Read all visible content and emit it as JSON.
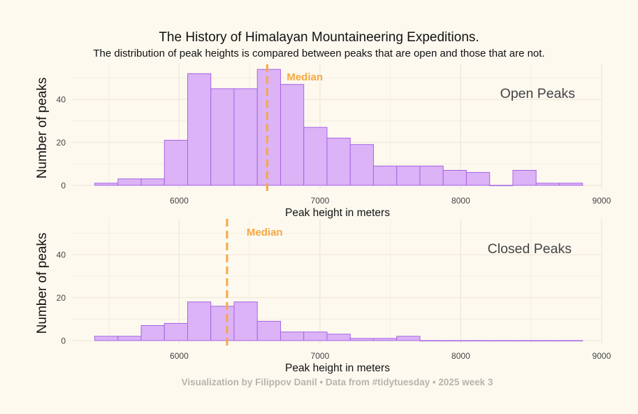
{
  "header": {
    "title": "The History of Himalayan Mountaineering Expeditions.",
    "subtitle": "The distribution of peak heights is compared between peaks that are open and those that are not."
  },
  "caption": "Visualization by Filippov Danil  •  Data from #tidytuesday • 2025 week 3",
  "colors": {
    "bar_fill": "#dcb3f6",
    "bar_stroke": "#a565e6",
    "median": "#f5a942",
    "background": "#fdf9ef"
  },
  "chart_data": [
    {
      "type": "bar",
      "panel_label": "Open Peaks",
      "xlabel": "Peak height in meters",
      "ylabel": "Number of peaks",
      "median_label": "Median",
      "median": 6625,
      "x_ticks": [
        6000,
        7000,
        8000,
        9000
      ],
      "y_ticks": [
        0,
        20,
        40
      ],
      "xlim": [
        5350,
        9000
      ],
      "ylim": [
        0,
        55
      ],
      "bin_width": 165,
      "bin_start": 5400,
      "values": [
        1,
        3,
        3,
        21,
        52,
        45,
        45,
        54,
        47,
        27,
        22,
        19,
        9,
        9,
        9,
        7,
        6,
        0,
        7,
        1,
        1
      ]
    },
    {
      "type": "bar",
      "panel_label": "Closed Peaks",
      "xlabel": "Peak height in meters",
      "ylabel": "Number of peaks",
      "median_label": "Median",
      "median": 6340,
      "x_ticks": [
        6000,
        7000,
        8000,
        9000
      ],
      "y_ticks": [
        0,
        20,
        40
      ],
      "xlim": [
        5350,
        9000
      ],
      "ylim": [
        0,
        55
      ],
      "bin_width": 165,
      "bin_start": 5400,
      "values": [
        2,
        2,
        7,
        8,
        18,
        16,
        18,
        9,
        4,
        4,
        3,
        1,
        1,
        2,
        0,
        0,
        0,
        0,
        0,
        0,
        0
      ]
    }
  ]
}
